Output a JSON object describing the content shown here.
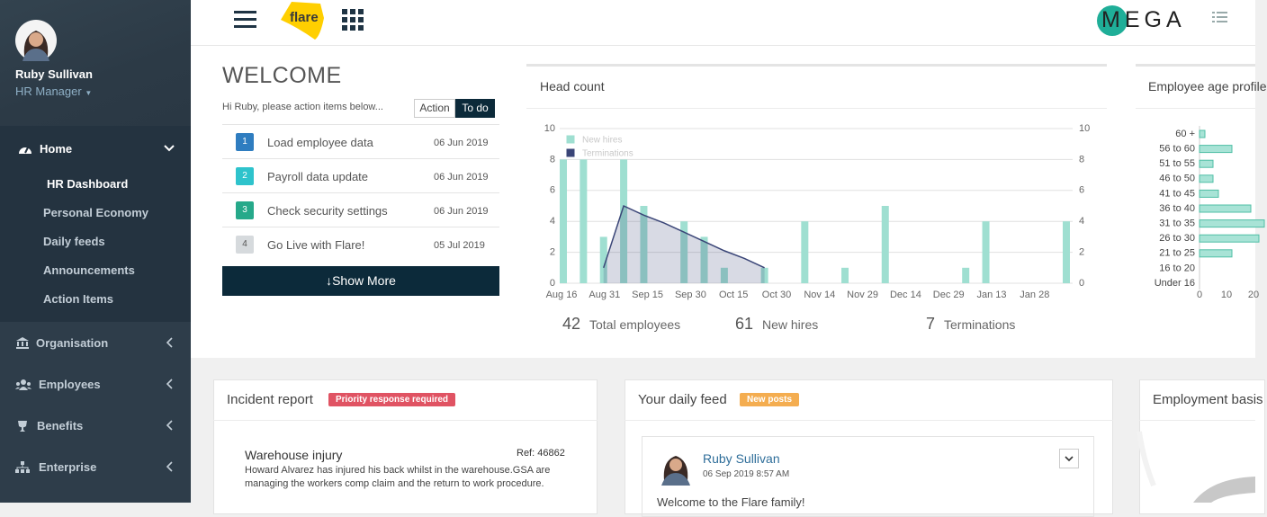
{
  "sidebar": {
    "user": {
      "name": "Ruby Sullivan",
      "role": "HR Manager"
    },
    "menu": [
      {
        "label": "Home",
        "items": [
          "HR Dashboard",
          "Personal Economy",
          "Daily feeds",
          "Announcements",
          "Action Items"
        ]
      },
      {
        "label": "Organisation"
      },
      {
        "label": "Employees"
      },
      {
        "label": "Benefits"
      },
      {
        "label": "Enterprise"
      }
    ]
  },
  "topbar": {
    "logo": "flare",
    "brand": "MEGA"
  },
  "welcome": {
    "title": "WELCOME",
    "subtitle": "Hi Ruby, please action items below...",
    "tabs": [
      "Action",
      "To do"
    ],
    "tasks": [
      {
        "number": "1",
        "label": "Load employee data",
        "date": "06 Jun 2019",
        "color": "#2f7dc0"
      },
      {
        "number": "2",
        "label": "Payroll data update",
        "date": "06 Jun 2019",
        "color": "#2ec3cc"
      },
      {
        "number": "3",
        "label": "Check security settings",
        "date": "06 Jun 2019",
        "color": "#26a98a"
      },
      {
        "number": "4",
        "label": "Go Live with Flare!",
        "date": "05 Jul 2019",
        "color": "#d6dadd"
      }
    ],
    "button": "Show More"
  },
  "chart_data": [
    {
      "type": "bar",
      "title": "Head count",
      "categories": [
        null,
        null,
        null,
        null,
        null,
        null,
        null,
        null,
        null,
        null,
        null,
        null,
        null,
        null,
        null,
        null,
        null,
        null,
        null,
        null,
        null,
        null,
        null,
        null,
        null,
        null
      ],
      "xtick_labels": [
        "Aug 16",
        "Aug 31",
        "Sep 15",
        "Sep 30",
        "Oct 15",
        "Oct 30",
        "Nov 14",
        "Nov 29",
        "Dec 14",
        "Dec 29",
        "Jan 13",
        "Jan 28"
      ],
      "series": [
        {
          "name": "New hires",
          "color": "#9fdfd1",
          "type": "bar",
          "values": [
            8,
            8,
            3,
            8,
            5,
            0,
            4,
            3,
            1,
            0,
            1,
            0,
            4,
            0,
            1,
            0,
            5,
            0,
            0,
            0,
            1,
            4,
            0,
            0,
            0,
            4
          ]
        },
        {
          "name": "Terminations",
          "color": "#3a4577",
          "type": "area",
          "axis": "y2",
          "values": [
            null,
            null,
            1,
            5,
            4.4,
            3.9,
            3.3,
            2.7,
            2.1,
            1.6,
            1,
            null,
            null,
            null,
            null,
            null,
            null,
            null,
            null,
            null,
            null,
            null,
            null,
            null,
            null,
            null
          ]
        }
      ],
      "ylim": [
        0,
        10
      ],
      "yticks": [
        0,
        2,
        4,
        6,
        8,
        10
      ],
      "y2lim": [
        0,
        10
      ],
      "y2ticks": [
        0,
        2,
        4,
        6,
        8,
        10
      ],
      "grid": true,
      "legend": "top-left"
    },
    {
      "type": "hbar",
      "title": "Employee age profile",
      "categories": [
        "60 +",
        "56 to 60",
        "51 to 55",
        "46 to 50",
        "41 to 45",
        "36 to 40",
        "31 to 35",
        "26 to 30",
        "21 to 25",
        "16 to 20",
        "Under 16"
      ],
      "values": [
        2,
        12,
        5,
        5,
        7,
        19,
        24,
        22,
        12,
        0,
        0
      ],
      "color": "#a8e3d6",
      "xlim": [
        0,
        25
      ],
      "xticks": [
        0,
        10,
        20
      ],
      "grid": false
    }
  ],
  "stats": [
    {
      "value": 42,
      "label": "Total employees"
    },
    {
      "value": 61,
      "label": "New hires"
    },
    {
      "value": 7,
      "label": "Terminations"
    }
  ],
  "incident": {
    "title": "Incident report",
    "badge": "Priority response required",
    "items": [
      {
        "title": "Warehouse injury",
        "ref": "Ref: 46862",
        "text": "Howard Alvarez has injured his back whilst in the warehouse.GSA are managing the workers comp claim and the return to work procedure."
      }
    ]
  },
  "feed": {
    "title": "Your daily feed",
    "badge": "New posts",
    "posts": [
      {
        "author": "Ruby Sullivan",
        "time": "06 Sep 2019 8:57 AM",
        "text": "Welcome to the Flare family!"
      }
    ]
  },
  "employment": {
    "title": "Employment basis"
  }
}
